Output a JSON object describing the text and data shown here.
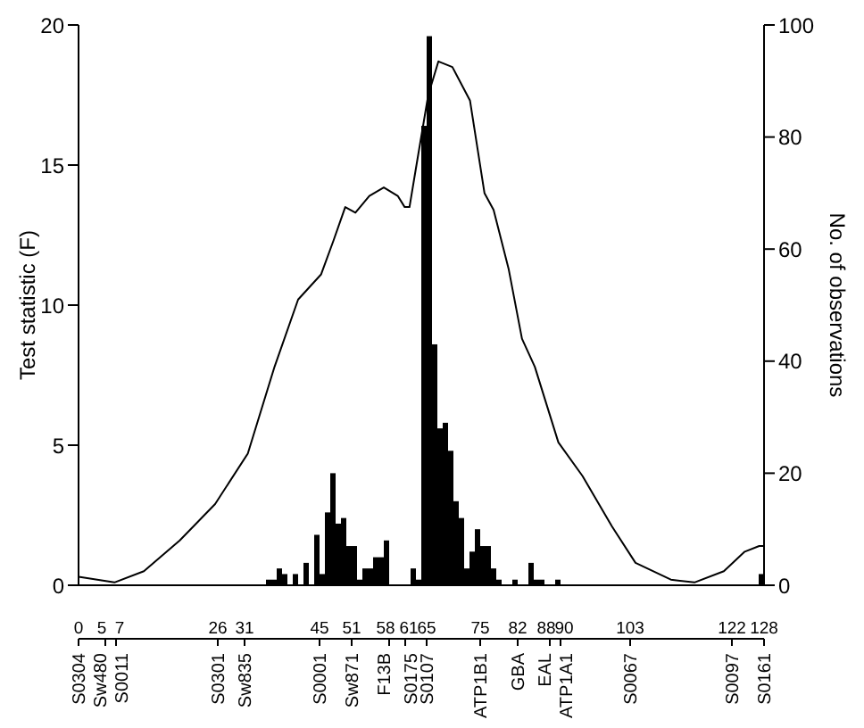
{
  "chart_data": {
    "type": "line",
    "ylabel": "Test statistic (F)",
    "y2label": "No. of observations",
    "xlim": [
      0,
      128
    ],
    "xticks": [
      0,
      5,
      7,
      26,
      31,
      45,
      51,
      58,
      61,
      65,
      75,
      82,
      88,
      90,
      103,
      122,
      128
    ],
    "annotations": [
      "S0304",
      "Sw480",
      "S0011",
      "S0301",
      "Sw835",
      "S0001",
      "Sw871",
      "F13B",
      "S0175",
      "S0107",
      "ATP1B1",
      "GBA",
      "EAL",
      "ATP1A1",
      "S0067",
      "S0097",
      "S0161"
    ],
    "ylim": [
      0,
      20
    ],
    "yticks": [
      0,
      5,
      10,
      15,
      20
    ],
    "y2lim": [
      0,
      100
    ],
    "y2ticks": [
      0,
      20,
      40,
      60,
      80,
      100
    ],
    "series": [
      {
        "color": "#000000",
        "x": [
          0,
          6.7,
          12.2,
          18.9,
          25.5,
          31.6,
          36.6,
          41,
          45.3,
          47.6,
          49.8,
          51.7,
          54.3,
          57,
          59.6,
          60.9,
          61.8,
          63.1,
          65.3,
          67.2,
          69.8,
          73.1,
          75.8,
          77.5,
          80.3,
          82.8,
          85.2,
          89.6,
          94.1,
          99.6,
          104,
          110.6,
          115,
          120.5,
          124.4,
          127.1,
          128
        ],
        "values": [
          0.3,
          0.1,
          0.5,
          1.6,
          2.9,
          4.7,
          7.8,
          10.2,
          11.1,
          12.3,
          13.5,
          13.3,
          13.9,
          14.2,
          13.9,
          13.5,
          13.5,
          15,
          17.5,
          18.7,
          18.5,
          17.3,
          14,
          13.4,
          11.3,
          8.8,
          7.8,
          5.1,
          3.9,
          2.1,
          0.8,
          0.2,
          0.1,
          0.5,
          1.2,
          1.4,
          1.4
        ]
      },
      {
        "type": "bar",
        "axis": "y2",
        "color": "#000000",
        "x": [
          35.5,
          36.5,
          37.5,
          38.5,
          40.5,
          42.5,
          44.5,
          45.5,
          46.5,
          47.5,
          48.5,
          49.5,
          50.5,
          51.5,
          52.5,
          53.5,
          54.5,
          55.5,
          56.5,
          57.5,
          62.5,
          63.5,
          64.5,
          65.5,
          66.5,
          67.5,
          68.5,
          69.5,
          70.5,
          71.5,
          72.5,
          73.5,
          74.5,
          75.5,
          76.5,
          77.5,
          78.5,
          81.5,
          84.5,
          85.5,
          86.5,
          89.5,
          127.5
        ],
        "values": [
          1,
          1,
          3,
          2,
          2,
          4,
          9,
          2,
          13,
          20,
          11,
          12,
          7,
          7,
          1,
          3,
          3,
          5,
          5,
          8,
          3,
          1,
          82,
          98,
          43,
          28,
          29,
          24,
          15,
          12,
          3,
          6,
          10,
          7,
          7,
          3,
          1,
          1,
          4,
          1,
          1,
          1,
          2
        ]
      }
    ]
  }
}
